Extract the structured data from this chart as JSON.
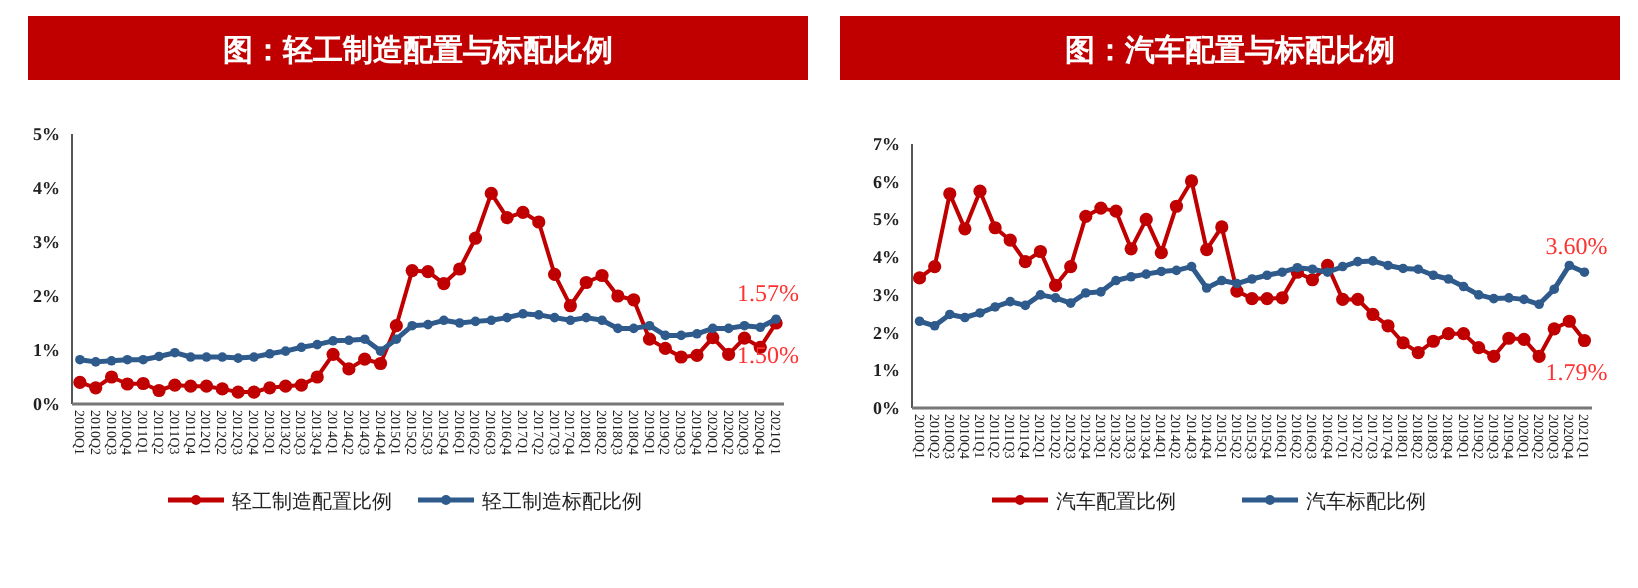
{
  "chart_data": [
    {
      "type": "line",
      "title": "图：轻工制造配置与标配比例",
      "marker": "circle",
      "legend": "bottom",
      "grid": false,
      "categories": [
        "2010Q1",
        "2010Q2",
        "2010Q3",
        "2010Q4",
        "2011Q1",
        "2011Q2",
        "2011Q3",
        "2011Q4",
        "2012Q1",
        "2012Q2",
        "2012Q3",
        "2012Q4",
        "2013Q1",
        "2013Q2",
        "2013Q3",
        "2013Q4",
        "2014Q1",
        "2014Q2",
        "2014Q3",
        "2014Q4",
        "2015Q1",
        "2015Q2",
        "2015Q3",
        "2015Q4",
        "2016Q1",
        "2016Q2",
        "2016Q3",
        "2016Q4",
        "2017Q1",
        "2017Q2",
        "2017Q3",
        "2017Q4",
        "2018Q1",
        "2018Q2",
        "2018Q3",
        "2018Q4",
        "2019Q1",
        "2019Q2",
        "2019Q3",
        "2019Q4",
        "2020Q1",
        "2020Q2",
        "2020Q3",
        "2020Q4",
        "2021Q1"
      ],
      "ylim": [
        0,
        5
      ],
      "yticks": [
        {
          "value": 0,
          "label": "0%"
        },
        {
          "value": 1,
          "label": "1%"
        },
        {
          "value": 2,
          "label": "2%"
        },
        {
          "value": 3,
          "label": "3%"
        },
        {
          "value": 4,
          "label": "4%"
        },
        {
          "value": 5,
          "label": "5%"
        }
      ],
      "series": [
        {
          "name": "轻工制造配置比例",
          "color": "#c00000",
          "values": [
            0.4,
            0.3,
            0.5,
            0.37,
            0.38,
            0.25,
            0.35,
            0.33,
            0.33,
            0.28,
            0.22,
            0.22,
            0.3,
            0.33,
            0.35,
            0.5,
            0.92,
            0.65,
            0.83,
            0.75,
            1.45,
            2.47,
            2.45,
            2.23,
            2.5,
            3.07,
            3.9,
            3.45,
            3.55,
            3.37,
            2.4,
            1.82,
            2.25,
            2.38,
            2.0,
            1.93,
            1.2,
            1.03,
            0.87,
            0.9,
            1.23,
            0.92,
            1.22,
            1.05,
            1.5
          ],
          "value_labels": [
            null,
            null,
            null,
            null,
            null,
            null,
            null,
            null,
            null,
            null,
            null,
            null,
            null,
            null,
            null,
            null,
            null,
            null,
            null,
            null,
            null,
            null,
            null,
            null,
            null,
            null,
            null,
            null,
            null,
            null,
            null,
            null,
            null,
            null,
            null,
            null,
            null,
            null,
            null,
            null,
            null,
            null,
            null,
            null,
            "1.50%"
          ]
        },
        {
          "name": "轻工制造标配比例",
          "color": "#2e5a8c",
          "values": [
            0.82,
            0.78,
            0.8,
            0.82,
            0.82,
            0.88,
            0.95,
            0.87,
            0.87,
            0.87,
            0.85,
            0.87,
            0.93,
            0.98,
            1.05,
            1.1,
            1.17,
            1.18,
            1.2,
            0.98,
            1.2,
            1.45,
            1.47,
            1.55,
            1.5,
            1.53,
            1.55,
            1.6,
            1.67,
            1.65,
            1.6,
            1.55,
            1.6,
            1.55,
            1.4,
            1.4,
            1.45,
            1.27,
            1.27,
            1.3,
            1.4,
            1.4,
            1.45,
            1.42,
            1.57
          ],
          "value_labels": [
            null,
            null,
            null,
            null,
            null,
            null,
            null,
            null,
            null,
            null,
            null,
            null,
            null,
            null,
            null,
            null,
            null,
            null,
            null,
            null,
            null,
            null,
            null,
            null,
            null,
            null,
            null,
            null,
            null,
            null,
            null,
            null,
            null,
            null,
            null,
            null,
            null,
            null,
            null,
            null,
            null,
            null,
            null,
            null,
            "1.57%"
          ]
        }
      ]
    },
    {
      "type": "line",
      "title": "图：汽车配置与标配比例",
      "marker": "circle",
      "legend": "bottom",
      "grid": false,
      "categories": [
        "2010Q1",
        "2010Q2",
        "2010Q3",
        "2010Q4",
        "2011Q1",
        "2011Q2",
        "2011Q3",
        "2011Q4",
        "2012Q1",
        "2012Q2",
        "2012Q3",
        "2012Q4",
        "2013Q1",
        "2013Q2",
        "2013Q3",
        "2013Q4",
        "2014Q1",
        "2014Q2",
        "2014Q3",
        "2014Q4",
        "2015Q1",
        "2015Q2",
        "2015Q3",
        "2015Q4",
        "2016Q1",
        "2016Q2",
        "2016Q3",
        "2016Q4",
        "2017Q1",
        "2017Q2",
        "2017Q3",
        "2017Q4",
        "2018Q1",
        "2018Q2",
        "2018Q3",
        "2018Q4",
        "2019Q1",
        "2019Q2",
        "2019Q3",
        "2019Q4",
        "2020Q1",
        "2020Q2",
        "2020Q3",
        "2020Q4",
        "2021Q1"
      ],
      "ylim": [
        0,
        7
      ],
      "yticks": [
        {
          "value": 0,
          "label": "0%"
        },
        {
          "value": 1,
          "label": "1%"
        },
        {
          "value": 2,
          "label": "2%"
        },
        {
          "value": 3,
          "label": "3%"
        },
        {
          "value": 4,
          "label": "4%"
        },
        {
          "value": 5,
          "label": "5%"
        },
        {
          "value": 6,
          "label": "6%"
        },
        {
          "value": 7,
          "label": "7%"
        }
      ],
      "series": [
        {
          "name": "汽车配置比例",
          "color": "#c00000",
          "values": [
            3.45,
            3.75,
            5.68,
            4.75,
            5.75,
            4.78,
            4.45,
            3.88,
            4.15,
            3.25,
            3.75,
            5.08,
            5.3,
            5.22,
            4.22,
            5.0,
            4.12,
            5.35,
            6.02,
            4.2,
            4.8,
            3.1,
            2.9,
            2.9,
            2.92,
            3.6,
            3.4,
            3.78,
            2.88,
            2.88,
            2.48,
            2.18,
            1.73,
            1.47,
            1.77,
            1.97,
            1.97,
            1.6,
            1.37,
            1.85,
            1.82,
            1.37,
            2.1,
            2.3,
            1.79
          ],
          "value_labels": [
            null,
            null,
            null,
            null,
            null,
            null,
            null,
            null,
            null,
            null,
            null,
            null,
            null,
            null,
            null,
            null,
            null,
            null,
            null,
            null,
            null,
            null,
            null,
            null,
            null,
            null,
            null,
            null,
            null,
            null,
            null,
            null,
            null,
            null,
            null,
            null,
            null,
            null,
            null,
            null,
            null,
            null,
            null,
            null,
            "1.79%"
          ]
        },
        {
          "name": "汽车标配比例",
          "color": "#2e5a8c",
          "values": [
            2.3,
            2.18,
            2.48,
            2.4,
            2.52,
            2.68,
            2.82,
            2.72,
            3.0,
            2.92,
            2.78,
            3.05,
            3.08,
            3.38,
            3.48,
            3.55,
            3.62,
            3.65,
            3.75,
            3.18,
            3.38,
            3.3,
            3.42,
            3.52,
            3.6,
            3.72,
            3.68,
            3.6,
            3.75,
            3.88,
            3.9,
            3.78,
            3.7,
            3.68,
            3.52,
            3.42,
            3.22,
            3.0,
            2.9,
            2.92,
            2.88,
            2.75,
            3.15,
            3.78,
            3.6
          ],
          "value_labels": [
            null,
            null,
            null,
            null,
            null,
            null,
            null,
            null,
            null,
            null,
            null,
            null,
            null,
            null,
            null,
            null,
            null,
            null,
            null,
            null,
            null,
            null,
            null,
            null,
            null,
            null,
            null,
            null,
            null,
            null,
            null,
            null,
            null,
            null,
            null,
            null,
            null,
            null,
            null,
            null,
            null,
            null,
            null,
            null,
            "3.60%"
          ]
        }
      ]
    }
  ]
}
